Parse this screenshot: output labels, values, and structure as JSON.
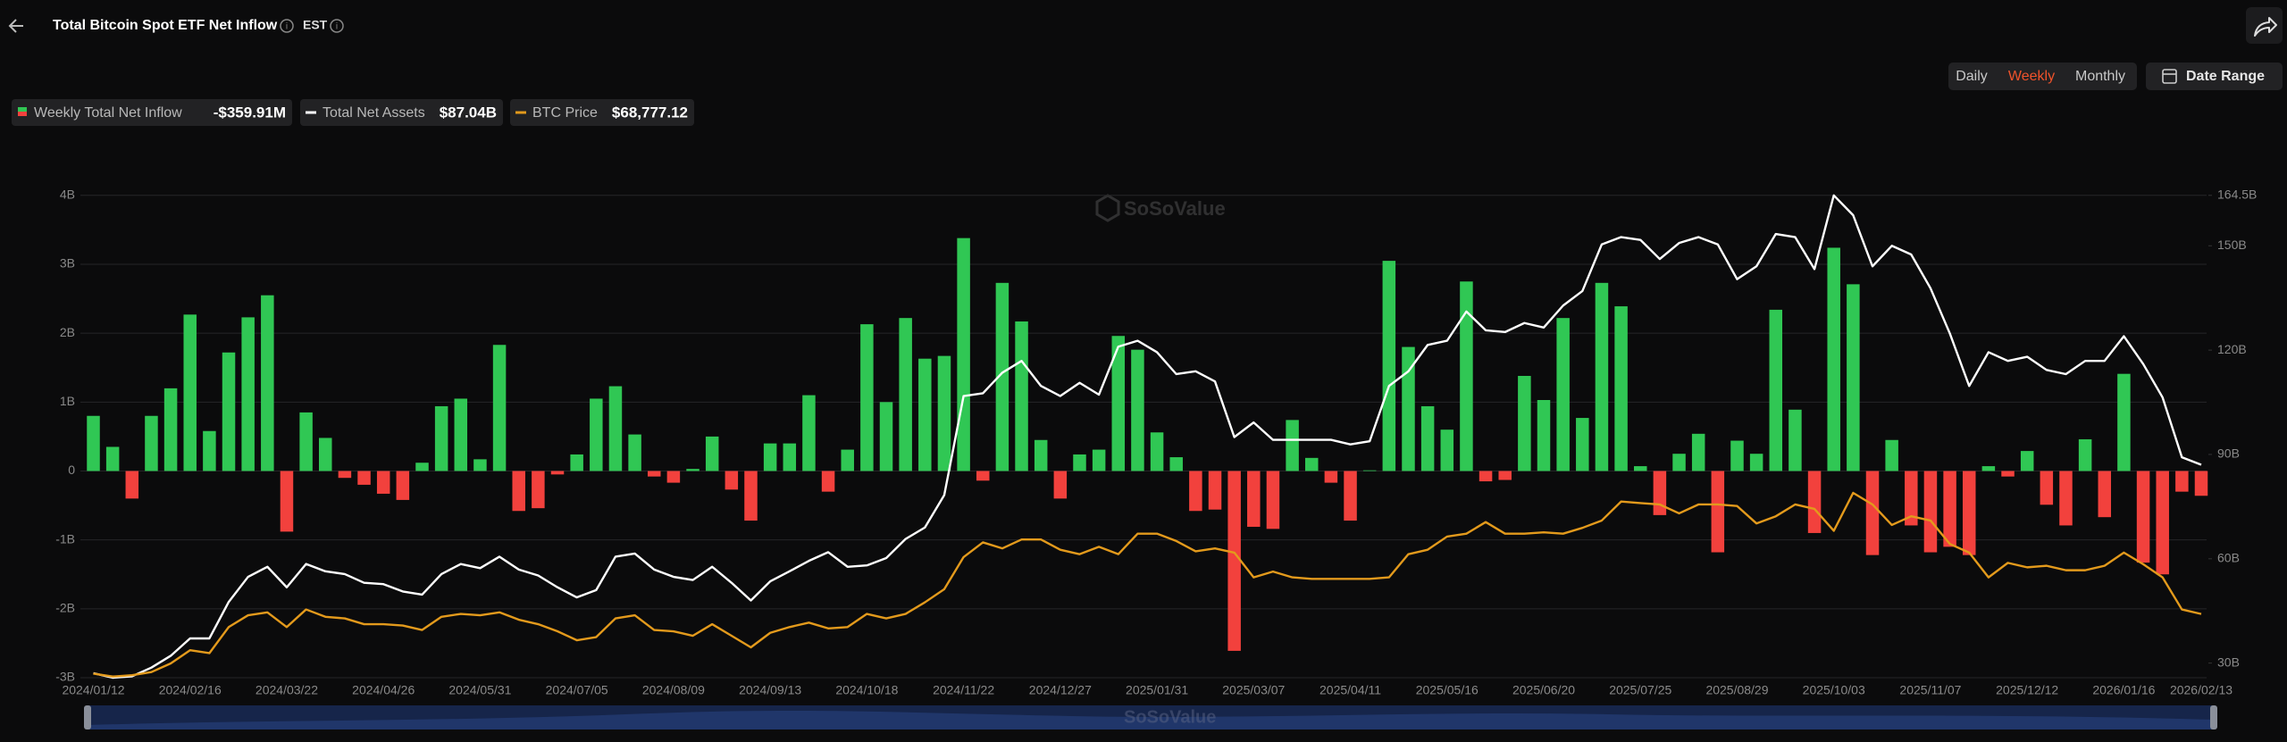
{
  "header": {
    "title": "Total Bitcoin Spot ETF Net Inflow",
    "timezone": "EST"
  },
  "controls": {
    "periods": [
      "Daily",
      "Weekly",
      "Monthly"
    ],
    "selected_period": 1,
    "date_range": "Date Range"
  },
  "watermark": "SoSoValue",
  "chart_data": {
    "type": "combo",
    "categories": [
      "2024/01/12",
      null,
      null,
      null,
      null,
      "2024/02/16",
      null,
      null,
      null,
      null,
      "2024/03/22",
      null,
      null,
      null,
      null,
      "2024/04/26",
      null,
      null,
      null,
      null,
      "2024/05/31",
      null,
      null,
      null,
      null,
      "2024/07/05",
      null,
      null,
      null,
      null,
      "2024/08/09",
      null,
      null,
      null,
      null,
      "2024/09/13",
      null,
      null,
      null,
      null,
      "2024/10/18",
      null,
      null,
      null,
      null,
      "2024/11/22",
      null,
      null,
      null,
      null,
      "2024/12/27",
      null,
      null,
      null,
      null,
      "2025/01/31",
      null,
      null,
      null,
      null,
      "2025/03/07",
      null,
      null,
      null,
      null,
      "2025/04/11",
      null,
      null,
      null,
      null,
      "2025/05/16",
      null,
      null,
      null,
      null,
      "2025/06/20",
      null,
      null,
      null,
      null,
      "2025/07/25",
      null,
      null,
      null,
      null,
      "2025/08/29",
      null,
      null,
      null,
      null,
      "2025/10/03",
      null,
      null,
      null,
      null,
      "2025/11/07",
      null,
      null,
      null,
      null,
      "2025/12/12",
      null,
      null,
      null,
      null,
      "2026/01/16",
      null,
      null,
      null,
      "2026/02/13"
    ],
    "series": [
      {
        "name": "Weekly Total Net Inflow",
        "type": "bar",
        "color": "#30c754",
        "negative_color": "#f2413d",
        "legend_value": "-$359.91M",
        "values": [
          0.8,
          0.35,
          -0.4,
          0.8,
          1.2,
          2.27,
          0.58,
          1.72,
          2.23,
          2.55,
          -0.88,
          0.85,
          0.48,
          -0.1,
          -0.2,
          -0.33,
          -0.42,
          0.12,
          0.94,
          1.05,
          0.17,
          1.83,
          -0.58,
          -0.54,
          -0.05,
          0.24,
          1.05,
          1.23,
          0.53,
          -0.08,
          -0.17,
          0.03,
          0.5,
          -0.27,
          -0.72,
          0.4,
          0.4,
          1.1,
          -0.3,
          0.31,
          2.13,
          1.0,
          2.22,
          1.63,
          1.67,
          3.38,
          -0.14,
          2.73,
          2.17,
          0.45,
          -0.4,
          0.24,
          0.31,
          1.96,
          1.76,
          0.56,
          0.2,
          -0.58,
          -0.56,
          -2.61,
          -0.81,
          -0.84,
          0.74,
          0.19,
          -0.17,
          -0.72,
          0.01,
          3.05,
          1.8,
          0.94,
          0.6,
          2.75,
          -0.15,
          -0.13,
          1.38,
          1.03,
          2.22,
          0.77,
          2.73,
          2.39,
          0.07,
          -0.64,
          0.25,
          0.54,
          -1.18,
          0.44,
          0.25,
          2.34,
          0.89,
          -0.9,
          3.24,
          2.71,
          -1.22,
          0.45,
          -0.79,
          -1.18,
          -1.1,
          -1.22,
          0.07,
          -0.08,
          0.29,
          -0.49,
          -0.79,
          0.46,
          -0.67,
          1.41,
          -1.33,
          -1.5,
          -0.3,
          -0.35991
        ]
      },
      {
        "name": "Total Net Assets",
        "type": "line",
        "axis": "y2",
        "color": "#ffffff",
        "legend_value": "$87.04B",
        "values": [
          27.1,
          25.8,
          26.2,
          28.7,
          32.1,
          37.1,
          37.1,
          47.6,
          54.8,
          57.7,
          51.8,
          58.5,
          56.4,
          55.6,
          53.1,
          52.7,
          50.6,
          49.7,
          55.6,
          58.5,
          57.3,
          60.6,
          56.9,
          55.2,
          51.8,
          48.9,
          51.0,
          60.6,
          61.5,
          56.9,
          54.8,
          53.9,
          57.7,
          53.1,
          48.0,
          53.5,
          56.4,
          59.4,
          61.9,
          57.7,
          58.1,
          60.2,
          65.7,
          69.0,
          78.3,
          106.8,
          107.6,
          113.5,
          116.9,
          109.7,
          106.8,
          110.6,
          107.2,
          121.0,
          122.7,
          119.4,
          113.1,
          113.9,
          111.0,
          95.0,
          99.2,
          94.2,
          94.2,
          94.2,
          94.2,
          92.9,
          93.8,
          109.7,
          113.9,
          121.5,
          122.7,
          131.1,
          125.7,
          125.2,
          127.8,
          126.5,
          132.8,
          137.0,
          150.4,
          152.5,
          151.7,
          146.2,
          150.8,
          152.5,
          150.4,
          140.4,
          144.1,
          153.4,
          152.5,
          143.3,
          164.5,
          158.8,
          144.1,
          150.0,
          147.5,
          137.8,
          124.8,
          109.7,
          119.4,
          116.9,
          118.1,
          114.3,
          113.1,
          116.9,
          116.9,
          124.0,
          116.0,
          106.4,
          89.2,
          87.04
        ]
      },
      {
        "name": "BTC Price",
        "type": "line",
        "axis": "y3",
        "color": "#e39a1c",
        "legend_value": "$68,777.12",
        "values": [
          42000,
          40700,
          41300,
          42700,
          46600,
          52500,
          51200,
          62900,
          68200,
          69500,
          62900,
          70800,
          67500,
          66800,
          64200,
          64200,
          63600,
          61600,
          67500,
          68800,
          68200,
          69500,
          66200,
          64200,
          61000,
          57000,
          58400,
          66800,
          68200,
          61600,
          61000,
          59000,
          64200,
          59000,
          53800,
          60300,
          62900,
          64900,
          62300,
          62900,
          68800,
          66800,
          68800,
          74000,
          79900,
          94300,
          100900,
          98200,
          102200,
          102200,
          97600,
          95600,
          98900,
          95600,
          104800,
          104800,
          101500,
          96900,
          98200,
          96300,
          85200,
          87800,
          85200,
          84500,
          84500,
          84500,
          84500,
          85200,
          95600,
          97600,
          103500,
          104800,
          110000,
          104800,
          104800,
          105400,
          104800,
          107400,
          110700,
          119200,
          118500,
          117900,
          113900,
          117900,
          117900,
          117200,
          109400,
          112600,
          117900,
          115900,
          106100,
          123100,
          117900,
          108700,
          112600,
          110700,
          100200,
          96300,
          85200,
          91700,
          89700,
          90400,
          88400,
          88400,
          90400,
          96300,
          91100,
          85200,
          70800,
          68777.12
        ]
      }
    ],
    "ylim": [
      -3,
      4
    ],
    "yticks": [
      {
        "value": -3,
        "label": "-3B"
      },
      {
        "value": -2,
        "label": "-2B"
      },
      {
        "value": -1,
        "label": "-1B"
      },
      0,
      {
        "value": 1,
        "label": "1B"
      },
      {
        "value": 2,
        "label": "2B"
      },
      {
        "value": 3,
        "label": "3B"
      },
      {
        "value": 4,
        "label": "4B"
      }
    ],
    "y2lim": [
      25.8,
      164.5
    ],
    "y2ticks": [
      {
        "value": 30,
        "label": "30B"
      },
      {
        "value": 60,
        "label": "60B"
      },
      {
        "value": 90,
        "label": "90B"
      },
      {
        "value": 120,
        "label": "120B"
      },
      {
        "value": 150,
        "label": "150B"
      },
      {
        "value": 164.5,
        "label": "164.5B"
      }
    ],
    "grid": true
  }
}
